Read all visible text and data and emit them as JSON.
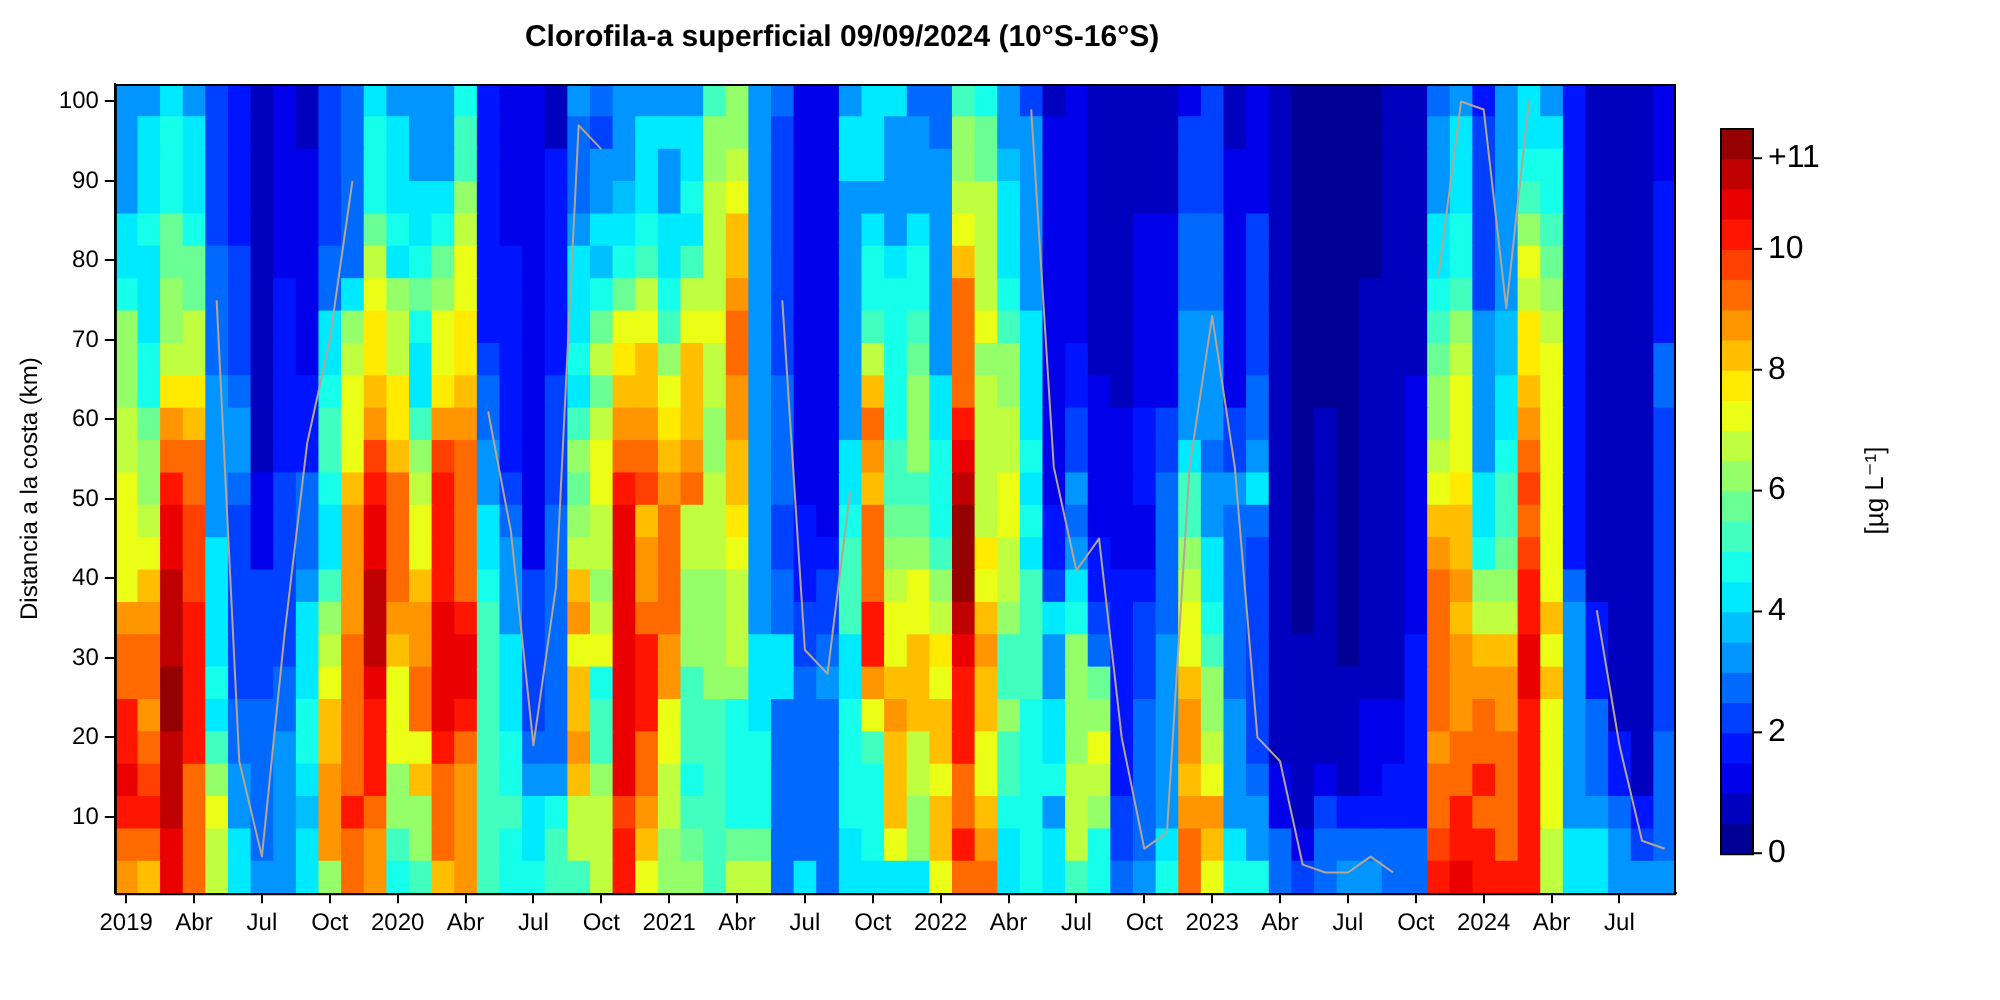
{
  "chart_data": {
    "type": "heatmap",
    "title": "Clorofila-a superficial 09/09/2024 (10°S-16°S)",
    "ylabel": "Distancia a la costa (km)",
    "clabel": "[µg L⁻¹]",
    "categories": [
      "2019",
      null,
      null,
      "Abr",
      null,
      null,
      "Jul",
      null,
      null,
      "Oct",
      null,
      null,
      "2020",
      null,
      null,
      "Abr",
      null,
      null,
      "Jul",
      null,
      null,
      "Oct",
      null,
      null,
      "2021",
      null,
      null,
      "Abr",
      null,
      null,
      "Jul",
      null,
      null,
      "Oct",
      null,
      null,
      "2022",
      null,
      null,
      "Abr",
      null,
      null,
      "Jul",
      null,
      null,
      "Oct",
      null,
      null,
      "2023",
      null,
      null,
      "Abr",
      null,
      null,
      "Jul",
      null,
      null,
      "Oct",
      null,
      null,
      "2024",
      null,
      null,
      "Abr",
      null,
      null,
      "Jul",
      null,
      null
    ],
    "ylim": [
      0.4,
      102.2
    ],
    "yticks": [
      10,
      20,
      30,
      40,
      50,
      60,
      70,
      80,
      90,
      100
    ],
    "clim": [
      0,
      12
    ],
    "cticks": [
      0,
      2,
      4,
      6,
      8,
      10,
      {
        "value": 11.5,
        "label": "+11"
      }
    ],
    "cells": [
      [
        3.25,
        3.25,
        4.25,
        3.25,
        2.25,
        1.75,
        0.75,
        1.25,
        0.75,
        2.25,
        2.75,
        4.25,
        3.25,
        3.25,
        3.25,
        4.75,
        1.75,
        1.25,
        1.25,
        0.75,
        3.25,
        2.75,
        3.25,
        3.25,
        3.25,
        3.25,
        5.25,
        6.25,
        3.25,
        2.75,
        1.25,
        1.25,
        3.25,
        4.25,
        4.25,
        2.75,
        2.75,
        5.25,
        4.75,
        3.25,
        2.25,
        0.75,
        1.25,
        0.75,
        0.75,
        0.75,
        0.75,
        1.25,
        2.25,
        0.75,
        1.25,
        0.75,
        0.25,
        0.25,
        0.25,
        0.25,
        0.75,
        0.75,
        2.75,
        3.25,
        1.75,
        3.25,
        4.25,
        3.25,
        1.75,
        0.75,
        0.75,
        0.75,
        1.25
      ],
      [
        3.25,
        4.25,
        4.75,
        4.25,
        2.25,
        1.75,
        0.75,
        1.25,
        0.75,
        2.25,
        2.75,
        4.75,
        4.25,
        3.25,
        3.25,
        5.25,
        1.75,
        1.25,
        1.25,
        0.75,
        2.75,
        2.25,
        3.25,
        4.25,
        4.25,
        4.25,
        6.25,
        6.25,
        3.25,
        2.25,
        1.25,
        1.25,
        4.25,
        4.25,
        3.25,
        3.25,
        2.75,
        6.25,
        5.75,
        3.25,
        3.25,
        1.25,
        1.25,
        0.75,
        0.75,
        0.75,
        0.75,
        2.25,
        2.25,
        0.75,
        1.25,
        0.75,
        0.25,
        0.25,
        0.25,
        0.25,
        0.75,
        0.75,
        3.25,
        4.25,
        2.25,
        3.25,
        4.25,
        4.25,
        1.75,
        0.75,
        0.75,
        0.75,
        1.25
      ],
      [
        3.25,
        4.25,
        4.75,
        4.25,
        2.25,
        1.75,
        0.75,
        1.25,
        1.25,
        2.25,
        2.75,
        4.75,
        4.25,
        3.25,
        3.25,
        5.25,
        1.75,
        1.25,
        1.25,
        1.75,
        2.75,
        3.25,
        3.25,
        4.25,
        3.25,
        4.25,
        6.25,
        6.75,
        3.25,
        2.25,
        1.25,
        1.25,
        4.25,
        4.25,
        3.25,
        3.25,
        3.25,
        6.25,
        5.75,
        3.75,
        3.25,
        1.25,
        1.25,
        0.75,
        0.75,
        0.75,
        0.75,
        2.25,
        2.25,
        1.25,
        1.25,
        0.75,
        0.25,
        0.25,
        0.25,
        0.25,
        0.75,
        0.75,
        3.25,
        4.25,
        2.25,
        3.25,
        4.75,
        4.75,
        1.75,
        0.75,
        0.75,
        0.75,
        1.25
      ],
      [
        3.25,
        4.25,
        4.75,
        4.25,
        2.25,
        1.75,
        0.75,
        1.25,
        1.25,
        2.25,
        2.75,
        4.75,
        4.25,
        4.25,
        4.25,
        6.25,
        1.75,
        1.25,
        1.25,
        1.75,
        2.75,
        3.25,
        3.75,
        4.25,
        3.25,
        4.75,
        6.75,
        7.25,
        3.25,
        2.25,
        1.25,
        1.25,
        3.25,
        3.25,
        3.25,
        3.25,
        3.25,
        6.75,
        6.75,
        4.25,
        3.25,
        1.25,
        1.25,
        0.75,
        0.75,
        0.75,
        0.75,
        2.25,
        2.25,
        1.25,
        1.25,
        0.75,
        0.25,
        0.25,
        0.25,
        0.25,
        0.75,
        0.75,
        3.25,
        4.25,
        2.25,
        3.25,
        5.25,
        4.75,
        1.75,
        0.75,
        0.75,
        0.75,
        1.75
      ],
      [
        4.25,
        4.75,
        5.75,
        4.75,
        2.25,
        1.75,
        0.75,
        1.25,
        1.25,
        2.25,
        2.75,
        5.75,
        4.75,
        4.25,
        4.75,
        6.75,
        1.75,
        1.25,
        1.25,
        1.75,
        3.25,
        4.25,
        4.25,
        4.75,
        4.25,
        4.25,
        6.75,
        8.25,
        3.25,
        2.25,
        1.25,
        1.25,
        3.25,
        4.25,
        3.25,
        4.25,
        3.25,
        7.25,
        6.75,
        4.25,
        3.25,
        1.25,
        1.25,
        0.75,
        0.75,
        1.25,
        1.25,
        2.75,
        2.75,
        1.25,
        2.25,
        0.75,
        0.25,
        0.25,
        0.25,
        0.25,
        0.75,
        0.75,
        4.25,
        4.75,
        2.25,
        3.25,
        6.25,
        5.25,
        1.75,
        0.75,
        0.75,
        0.75,
        1.75
      ],
      [
        4.25,
        4.25,
        5.75,
        5.75,
        2.75,
        2.25,
        0.75,
        1.25,
        1.25,
        2.75,
        2.75,
        6.75,
        4.25,
        4.75,
        5.75,
        7.25,
        1.75,
        1.75,
        1.25,
        1.75,
        4.25,
        3.75,
        4.75,
        5.25,
        4.25,
        5.25,
        6.75,
        8.25,
        3.25,
        2.25,
        1.25,
        1.25,
        3.25,
        4.75,
        4.25,
        4.75,
        3.25,
        8.25,
        6.75,
        4.25,
        3.25,
        1.25,
        1.25,
        0.75,
        0.75,
        1.25,
        1.25,
        2.75,
        2.75,
        1.25,
        2.25,
        0.75,
        0.25,
        0.25,
        0.25,
        0.25,
        0.75,
        0.75,
        4.25,
        4.75,
        2.25,
        3.25,
        7.25,
        5.75,
        1.75,
        0.75,
        0.75,
        0.75,
        1.75
      ],
      [
        4.75,
        4.25,
        6.25,
        5.75,
        2.75,
        2.25,
        0.75,
        1.75,
        1.25,
        2.75,
        4.25,
        7.25,
        6.25,
        5.75,
        6.25,
        7.25,
        1.75,
        1.75,
        1.25,
        1.75,
        4.25,
        4.75,
        5.75,
        6.75,
        4.75,
        6.75,
        6.75,
        8.75,
        3.25,
        2.25,
        1.25,
        1.25,
        3.25,
        4.75,
        4.75,
        4.75,
        3.25,
        9.25,
        6.75,
        4.75,
        3.25,
        1.25,
        1.25,
        0.75,
        0.75,
        1.25,
        1.25,
        2.75,
        2.75,
        1.25,
        2.25,
        0.75,
        0.25,
        0.25,
        0.25,
        0.75,
        0.75,
        0.75,
        4.75,
        5.25,
        2.25,
        3.25,
        6.75,
        6.25,
        1.75,
        0.75,
        0.75,
        0.75,
        1.75
      ],
      [
        6.25,
        4.25,
        6.25,
        6.75,
        2.75,
        2.25,
        0.75,
        1.75,
        1.25,
        4.25,
        6.25,
        7.75,
        6.75,
        4.75,
        7.25,
        7.75,
        1.75,
        1.75,
        1.25,
        1.75,
        4.25,
        5.75,
        7.25,
        7.25,
        5.25,
        7.25,
        7.25,
        9.25,
        3.25,
        2.25,
        1.25,
        1.25,
        3.25,
        5.25,
        4.75,
        5.25,
        3.25,
        9.25,
        7.25,
        5.25,
        4.25,
        1.25,
        1.25,
        0.75,
        0.75,
        1.25,
        1.25,
        3.25,
        3.25,
        1.25,
        2.25,
        0.75,
        0.25,
        0.25,
        0.25,
        0.75,
        0.75,
        0.75,
        5.25,
        6.25,
        3.25,
        3.75,
        7.75,
        6.75,
        1.75,
        0.75,
        0.75,
        0.75,
        1.75
      ],
      [
        6.25,
        4.75,
        6.75,
        6.75,
        2.75,
        2.25,
        0.75,
        1.75,
        1.25,
        4.25,
        6.75,
        7.75,
        6.75,
        4.25,
        7.25,
        7.75,
        2.25,
        1.75,
        1.25,
        1.75,
        4.75,
        6.75,
        7.75,
        8.25,
        6.25,
        8.25,
        6.75,
        9.25,
        3.25,
        2.25,
        1.25,
        1.25,
        3.25,
        6.75,
        4.75,
        5.75,
        3.25,
        9.25,
        6.25,
        6.25,
        4.25,
        1.25,
        1.75,
        0.75,
        0.75,
        1.25,
        1.25,
        3.25,
        3.25,
        1.25,
        2.25,
        0.75,
        0.25,
        0.25,
        0.25,
        0.75,
        0.75,
        0.75,
        5.75,
        6.75,
        3.25,
        3.75,
        7.75,
        7.25,
        1.75,
        0.75,
        0.75,
        0.75,
        2.75
      ],
      [
        6.25,
        4.75,
        7.75,
        7.75,
        3.25,
        2.75,
        0.75,
        1.75,
        1.75,
        4.75,
        7.25,
        8.25,
        7.75,
        4.25,
        7.75,
        8.25,
        2.75,
        1.75,
        1.25,
        2.25,
        4.25,
        5.75,
        8.25,
        8.25,
        7.25,
        8.25,
        6.75,
        8.75,
        3.25,
        2.75,
        1.25,
        1.25,
        3.25,
        8.25,
        4.75,
        6.25,
        4.25,
        9.25,
        6.75,
        6.25,
        4.25,
        1.25,
        1.75,
        1.25,
        0.75,
        1.25,
        1.25,
        3.25,
        3.25,
        1.25,
        2.75,
        0.75,
        0.25,
        0.25,
        0.25,
        0.75,
        0.75,
        1.25,
        6.25,
        7.25,
        3.25,
        4.25,
        8.25,
        7.25,
        1.75,
        0.75,
        0.75,
        0.75,
        2.75
      ],
      [
        6.75,
        5.75,
        8.75,
        8.25,
        3.25,
        3.25,
        0.75,
        1.75,
        1.75,
        5.25,
        7.25,
        8.75,
        7.75,
        5.25,
        8.75,
        8.75,
        2.75,
        1.75,
        1.25,
        2.25,
        5.25,
        6.75,
        8.75,
        8.75,
        7.75,
        8.25,
        6.25,
        8.75,
        3.25,
        2.75,
        1.25,
        1.25,
        3.25,
        9.25,
        4.75,
        6.25,
        4.25,
        10.25,
        6.75,
        6.75,
        4.25,
        1.25,
        2.25,
        1.25,
        1.25,
        1.75,
        2.25,
        3.25,
        3.25,
        2.25,
        2.75,
        0.75,
        0.25,
        0.75,
        0.25,
        0.75,
        0.75,
        1.25,
        6.25,
        7.25,
        3.25,
        4.25,
        8.75,
        7.25,
        1.75,
        0.75,
        0.75,
        0.75,
        2.25
      ],
      [
        6.75,
        6.25,
        9.25,
        9.25,
        3.25,
        3.25,
        0.75,
        1.75,
        1.75,
        5.25,
        7.25,
        9.75,
        8.25,
        6.25,
        9.75,
        9.25,
        3.25,
        1.75,
        1.25,
        2.25,
        6.25,
        7.25,
        9.25,
        9.25,
        8.25,
        8.75,
        6.25,
        8.25,
        3.25,
        2.75,
        1.25,
        1.25,
        4.25,
        8.75,
        5.25,
        6.25,
        4.75,
        10.75,
        6.75,
        6.75,
        4.75,
        1.25,
        2.25,
        1.25,
        1.25,
        1.75,
        2.25,
        4.25,
        2.75,
        2.25,
        3.25,
        0.75,
        0.25,
        0.75,
        0.25,
        0.75,
        0.75,
        1.25,
        6.75,
        7.25,
        3.25,
        4.75,
        9.25,
        7.25,
        1.75,
        0.75,
        0.75,
        0.75,
        2.25
      ],
      [
        7.25,
        6.25,
        10.25,
        9.25,
        3.25,
        2.75,
        1.25,
        2.25,
        2.75,
        4.75,
        8.25,
        10.25,
        9.25,
        6.75,
        10.25,
        9.25,
        3.25,
        2.25,
        1.25,
        2.25,
        5.75,
        7.25,
        10.25,
        9.75,
        8.75,
        9.25,
        6.75,
        8.25,
        3.25,
        2.75,
        1.25,
        1.25,
        4.25,
        8.25,
        5.25,
        5.25,
        4.75,
        11.25,
        6.75,
        7.25,
        4.25,
        1.25,
        3.25,
        1.25,
        1.25,
        1.75,
        2.75,
        5.25,
        3.25,
        3.25,
        4.25,
        0.75,
        0.25,
        0.75,
        0.25,
        0.75,
        0.75,
        1.25,
        7.25,
        7.75,
        4.25,
        5.25,
        9.75,
        7.25,
        1.75,
        0.75,
        0.75,
        0.75,
        2.25
      ],
      [
        7.25,
        6.75,
        10.75,
        9.75,
        3.25,
        2.25,
        1.25,
        2.25,
        2.75,
        4.25,
        8.75,
        10.75,
        9.25,
        7.25,
        10.25,
        9.25,
        4.25,
        2.75,
        1.25,
        2.75,
        6.25,
        6.75,
        10.75,
        8.25,
        9.25,
        6.75,
        6.75,
        7.75,
        3.25,
        2.25,
        1.75,
        1.25,
        4.75,
        9.25,
        5.75,
        5.75,
        4.75,
        11.75,
        6.75,
        7.25,
        4.75,
        1.75,
        2.75,
        1.25,
        1.25,
        1.25,
        2.75,
        5.25,
        3.25,
        2.75,
        2.75,
        0.75,
        0.25,
        0.75,
        0.25,
        0.75,
        0.75,
        1.25,
        8.25,
        8.25,
        4.25,
        5.25,
        9.25,
        7.25,
        1.75,
        0.75,
        0.75,
        0.75,
        2.25
      ],
      [
        7.25,
        7.25,
        10.75,
        9.75,
        4.25,
        2.25,
        1.25,
        2.25,
        2.75,
        4.25,
        8.75,
        10.75,
        9.25,
        7.25,
        10.25,
        9.25,
        4.25,
        3.25,
        1.25,
        2.75,
        6.75,
        6.75,
        10.75,
        8.75,
        9.25,
        6.75,
        6.75,
        7.25,
        3.25,
        2.25,
        1.75,
        1.75,
        5.25,
        9.25,
        6.25,
        6.25,
        5.25,
        11.75,
        7.75,
        6.75,
        4.25,
        1.75,
        3.25,
        1.75,
        1.25,
        1.25,
        2.75,
        6.25,
        4.25,
        2.75,
        2.25,
        0.75,
        0.25,
        0.75,
        0.25,
        0.75,
        0.75,
        1.25,
        8.75,
        8.25,
        4.75,
        5.75,
        9.75,
        7.25,
        1.75,
        0.75,
        0.75,
        0.75,
        2.25
      ],
      [
        7.25,
        8.25,
        11.25,
        9.75,
        4.25,
        2.25,
        2.25,
        2.25,
        3.25,
        5.25,
        8.75,
        11.25,
        9.25,
        8.25,
        10.25,
        9.25,
        4.75,
        3.25,
        2.25,
        2.75,
        8.25,
        6.25,
        10.75,
        8.75,
        9.25,
        6.25,
        6.25,
        6.75,
        3.25,
        2.75,
        1.75,
        2.25,
        5.25,
        9.25,
        6.75,
        7.25,
        6.25,
        11.75,
        7.25,
        6.75,
        5.25,
        2.25,
        4.25,
        1.75,
        1.75,
        1.75,
        2.75,
        6.75,
        4.25,
        2.75,
        2.25,
        0.75,
        0.25,
        0.75,
        0.25,
        0.75,
        0.75,
        1.25,
        9.25,
        8.75,
        6.25,
        6.25,
        10.25,
        7.25,
        2.75,
        0.75,
        0.75,
        0.75,
        2.25
      ],
      [
        8.75,
        8.75,
        11.25,
        10.25,
        4.25,
        2.25,
        2.25,
        2.25,
        4.25,
        6.25,
        8.75,
        11.25,
        8.75,
        8.75,
        10.75,
        10.25,
        5.25,
        3.25,
        2.25,
        2.75,
        8.75,
        6.75,
        10.75,
        9.25,
        9.25,
        6.25,
        6.25,
        6.75,
        3.25,
        2.75,
        2.25,
        2.25,
        5.25,
        10.25,
        7.25,
        7.25,
        6.75,
        11.25,
        8.25,
        6.25,
        5.25,
        4.25,
        4.75,
        2.25,
        1.75,
        2.25,
        2.75,
        7.25,
        4.75,
        2.75,
        2.25,
        0.75,
        0.25,
        0.75,
        0.25,
        0.75,
        0.75,
        1.25,
        9.25,
        8.25,
        6.75,
        6.75,
        10.25,
        8.25,
        3.25,
        1.75,
        0.75,
        0.75,
        2.25
      ],
      [
        9.25,
        9.25,
        11.25,
        10.25,
        4.25,
        2.25,
        2.25,
        2.25,
        4.25,
        6.75,
        9.25,
        11.25,
        8.25,
        8.75,
        10.75,
        10.75,
        5.25,
        4.25,
        2.25,
        2.75,
        7.25,
        7.25,
        10.75,
        10.25,
        8.75,
        6.25,
        6.25,
        6.75,
        4.25,
        4.25,
        2.25,
        2.75,
        4.25,
        10.25,
        7.25,
        8.25,
        7.75,
        10.75,
        8.75,
        5.25,
        5.25,
        3.25,
        6.25,
        2.75,
        1.75,
        2.25,
        3.25,
        7.25,
        5.25,
        2.75,
        2.25,
        0.75,
        0.75,
        0.75,
        0.25,
        0.75,
        0.75,
        1.75,
        9.25,
        8.75,
        8.25,
        8.25,
        10.75,
        7.25,
        3.25,
        1.75,
        0.75,
        0.75,
        2.25
      ],
      [
        9.25,
        9.25,
        11.75,
        10.25,
        4.75,
        2.25,
        2.25,
        2.75,
        4.25,
        7.25,
        9.25,
        10.75,
        7.25,
        9.25,
        10.75,
        10.75,
        5.25,
        4.25,
        2.25,
        2.75,
        8.25,
        4.75,
        10.75,
        10.25,
        8.75,
        5.25,
        6.25,
        6.25,
        4.25,
        4.25,
        2.75,
        3.25,
        4.25,
        8.75,
        8.25,
        8.25,
        7.25,
        10.25,
        8.25,
        5.25,
        5.25,
        3.25,
        6.25,
        5.75,
        1.75,
        2.25,
        3.25,
        8.25,
        6.25,
        2.75,
        2.25,
        0.75,
        0.75,
        0.75,
        0.75,
        0.75,
        0.75,
        1.75,
        9.25,
        8.75,
        8.75,
        8.75,
        10.75,
        8.25,
        3.25,
        1.75,
        0.75,
        0.75,
        2.25
      ],
      [
        10.25,
        8.75,
        11.75,
        10.25,
        4.25,
        2.75,
        2.75,
        2.75,
        4.75,
        8.25,
        9.25,
        10.25,
        7.25,
        9.25,
        10.75,
        10.25,
        5.25,
        4.25,
        2.25,
        2.75,
        8.25,
        5.25,
        10.75,
        10.25,
        7.25,
        5.25,
        5.25,
        4.75,
        4.25,
        2.75,
        2.75,
        2.75,
        4.75,
        7.25,
        8.75,
        8.25,
        8.25,
        10.25,
        8.25,
        6.25,
        4.75,
        4.25,
        6.25,
        6.25,
        1.75,
        2.75,
        3.25,
        8.75,
        6.25,
        3.25,
        2.25,
        0.75,
        0.75,
        0.75,
        0.75,
        1.25,
        1.25,
        1.75,
        9.25,
        8.75,
        9.25,
        8.75,
        10.25,
        7.25,
        3.25,
        2.75,
        0.75,
        0.75,
        2.25
      ],
      [
        10.25,
        9.25,
        11.25,
        10.25,
        5.25,
        2.75,
        2.75,
        3.25,
        4.75,
        8.25,
        9.25,
        10.25,
        7.25,
        7.25,
        10.25,
        9.25,
        5.25,
        4.75,
        2.75,
        2.75,
        8.75,
        5.25,
        10.75,
        9.25,
        7.25,
        5.25,
        5.25,
        4.75,
        4.75,
        2.75,
        2.75,
        2.75,
        4.75,
        5.25,
        8.25,
        6.75,
        8.25,
        10.25,
        7.25,
        5.25,
        4.75,
        4.25,
        6.25,
        7.25,
        1.75,
        2.75,
        3.25,
        8.75,
        6.75,
        3.25,
        2.25,
        0.75,
        0.75,
        0.75,
        0.75,
        1.25,
        1.25,
        1.75,
        8.75,
        9.25,
        9.25,
        9.25,
        10.25,
        7.25,
        3.25,
        2.75,
        1.75,
        0.75,
        2.75
      ],
      [
        10.75,
        9.75,
        11.25,
        9.25,
        6.25,
        3.25,
        2.75,
        3.25,
        4.25,
        8.75,
        9.25,
        10.25,
        6.25,
        8.25,
        9.25,
        8.75,
        5.25,
        4.75,
        3.25,
        3.25,
        8.25,
        6.25,
        10.75,
        9.25,
        6.75,
        4.75,
        5.25,
        4.75,
        4.75,
        2.75,
        2.75,
        2.75,
        4.75,
        4.75,
        8.25,
        6.75,
        7.25,
        9.25,
        7.25,
        5.25,
        4.75,
        4.75,
        6.75,
        6.75,
        1.75,
        2.75,
        3.25,
        8.25,
        7.25,
        3.25,
        2.75,
        1.25,
        0.75,
        1.25,
        0.75,
        1.25,
        1.75,
        1.75,
        9.25,
        9.25,
        10.25,
        9.25,
        10.25,
        7.25,
        3.25,
        2.75,
        1.75,
        0.75,
        2.75
      ],
      [
        10.25,
        10.25,
        11.25,
        9.25,
        7.25,
        3.25,
        2.75,
        3.25,
        3.75,
        8.75,
        10.25,
        9.25,
        6.25,
        6.25,
        9.25,
        8.75,
        5.25,
        5.25,
        4.25,
        4.75,
        6.75,
        6.75,
        9.75,
        8.75,
        6.75,
        5.25,
        5.25,
        4.75,
        4.75,
        2.75,
        2.75,
        2.75,
        4.75,
        4.75,
        8.25,
        6.25,
        8.25,
        9.25,
        8.25,
        4.75,
        4.75,
        3.25,
        6.75,
        6.25,
        2.25,
        2.75,
        3.25,
        8.75,
        8.75,
        3.25,
        3.25,
        1.25,
        0.75,
        2.25,
        1.75,
        1.75,
        1.75,
        1.75,
        9.25,
        10.25,
        9.25,
        9.25,
        10.25,
        7.25,
        3.25,
        3.25,
        2.75,
        1.75,
        2.75
      ],
      [
        9.25,
        9.25,
        10.75,
        9.25,
        6.75,
        4.25,
        2.75,
        3.25,
        4.25,
        8.75,
        9.25,
        8.75,
        5.25,
        6.25,
        9.25,
        8.75,
        5.25,
        4.75,
        4.25,
        5.25,
        6.75,
        6.75,
        10.25,
        8.25,
        6.25,
        5.75,
        5.25,
        5.75,
        5.75,
        2.75,
        2.75,
        2.75,
        4.25,
        4.75,
        7.25,
        6.25,
        8.25,
        10.25,
        8.75,
        4.25,
        4.75,
        4.25,
        6.75,
        4.75,
        2.25,
        2.75,
        4.25,
        9.25,
        8.25,
        4.25,
        3.25,
        2.75,
        1.25,
        2.75,
        2.75,
        2.75,
        2.75,
        2.75,
        9.75,
        10.25,
        10.25,
        9.25,
        10.25,
        6.75,
        4.25,
        4.25,
        3.25,
        2.25,
        2.75
      ],
      [
        8.75,
        8.25,
        10.75,
        9.25,
        6.75,
        4.25,
        3.25,
        3.25,
        4.25,
        6.25,
        9.25,
        8.75,
        4.75,
        5.25,
        8.25,
        8.75,
        5.25,
        4.75,
        4.75,
        5.25,
        5.25,
        6.75,
        10.25,
        7.25,
        6.25,
        6.25,
        5.25,
        6.75,
        6.75,
        2.75,
        4.25,
        2.75,
        4.25,
        4.25,
        4.25,
        4.25,
        7.25,
        9.25,
        9.25,
        4.25,
        4.75,
        4.25,
        5.25,
        4.75,
        2.75,
        3.25,
        4.75,
        9.25,
        7.25,
        4.75,
        4.75,
        2.75,
        2.25,
        2.75,
        3.25,
        3.25,
        2.75,
        2.75,
        10.25,
        10.75,
        10.25,
        10.25,
        10.25,
        6.75,
        4.25,
        4.25,
        3.25,
        3.25,
        3.25
      ]
    ],
    "series": [
      {
        "type": "line",
        "color": "#b4a596",
        "values": [
          null,
          null,
          null,
          null,
          75,
          17,
          5,
          33,
          57,
          70,
          90,
          null,
          null,
          null,
          null,
          null,
          61,
          46,
          19,
          39,
          97,
          94,
          null,
          null,
          null,
          null,
          null,
          null,
          null,
          75,
          31,
          28,
          51,
          null,
          null,
          null,
          null,
          null,
          null,
          null,
          99,
          54,
          41,
          45,
          20,
          6,
          8,
          54,
          73,
          54,
          20,
          17,
          4,
          3,
          3,
          5,
          3,
          null,
          78,
          100,
          99,
          74,
          100,
          null,
          null,
          36,
          19,
          7,
          6
        ]
      }
    ]
  }
}
